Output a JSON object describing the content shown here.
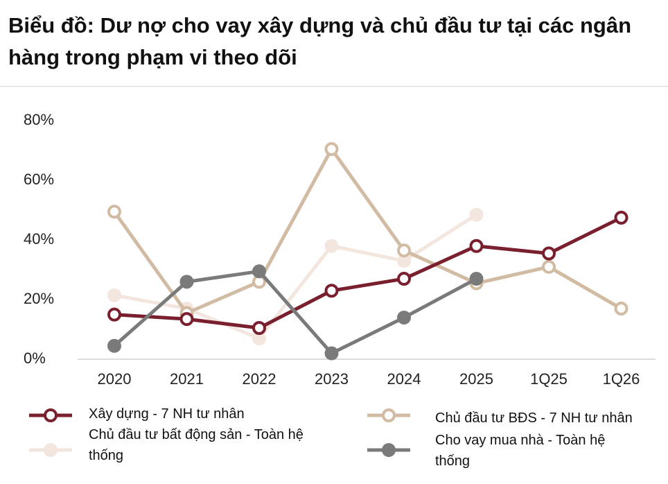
{
  "chart_data": {
    "type": "line",
    "title": "Biểu đồ: Dư nợ cho vay xây dựng và chủ đầu tư tại các ngân hàng trong phạm vi theo dõi",
    "categories": [
      "2020",
      "2021",
      "2022",
      "2023",
      "2024",
      "2025",
      "1Q25",
      "1Q26"
    ],
    "y_ticks": [
      "0%",
      "20%",
      "40%",
      "60%",
      "80%"
    ],
    "ylim": [
      0,
      80
    ],
    "grid": false,
    "legend_position": "bottom",
    "series": [
      {
        "name": "Xây dựng - 7 NH tư nhân",
        "color": "#7a1f2e",
        "marker": "hollow",
        "values": [
          14.5,
          13,
          10,
          22.5,
          26.5,
          37.5,
          35,
          47
        ]
      },
      {
        "name": "Chủ đầu tư BĐS - 7 NH tư nhân",
        "color": "#d2bba3",
        "marker": "hollow",
        "values": [
          49,
          15,
          25.5,
          70,
          36,
          25,
          30.5,
          16.5
        ]
      },
      {
        "name": "Chủ đầu tư bất động sản - Toàn hệ thống",
        "color": "#f3e6df",
        "marker": "filled",
        "values": [
          21,
          16.5,
          6.5,
          37.5,
          32.5,
          48,
          null,
          null
        ]
      },
      {
        "name": "Cho vay mua nhà - Toàn hệ thống",
        "color": "#7a7a7a",
        "marker": "filled",
        "values": [
          4,
          25.5,
          29,
          1.5,
          13.5,
          26.5,
          null,
          null
        ]
      }
    ]
  }
}
